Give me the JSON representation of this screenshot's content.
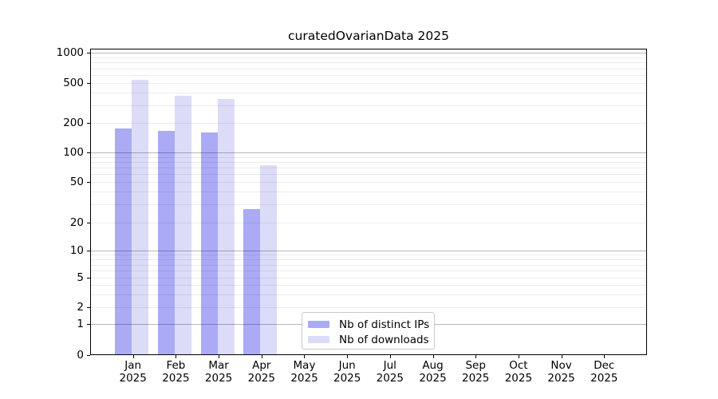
{
  "chart_data": {
    "type": "bar",
    "title": "curatedOvarianData 2025",
    "categories": [
      "Jan",
      "Feb",
      "Mar",
      "Apr",
      "May",
      "Jun",
      "Jul",
      "Aug",
      "Sep",
      "Oct",
      "Nov",
      "Dec"
    ],
    "year": "2025",
    "series": [
      {
        "name": "Nb of distinct IPs",
        "color": "#aaaaf5",
        "values": [
          175,
          166,
          159,
          27,
          null,
          null,
          null,
          null,
          null,
          null,
          null,
          null
        ]
      },
      {
        "name": "Nb of downloads",
        "color": "#dcdcf8",
        "values": [
          538,
          373,
          348,
          74,
          null,
          null,
          null,
          null,
          null,
          null,
          null,
          null
        ]
      }
    ],
    "y_axis": {
      "ticks": [
        0,
        1,
        2,
        5,
        10,
        20,
        50,
        100,
        200,
        500,
        1000
      ],
      "scale": "log-like",
      "range": [
        0,
        1000
      ]
    },
    "x_axis": {
      "label_format": "month over year, two lines"
    },
    "grid": {
      "horizontal": true,
      "major_color": "#b8b8b8",
      "minor_color": "#ececec"
    },
    "legend": {
      "position": "bottom-center-inside"
    }
  }
}
